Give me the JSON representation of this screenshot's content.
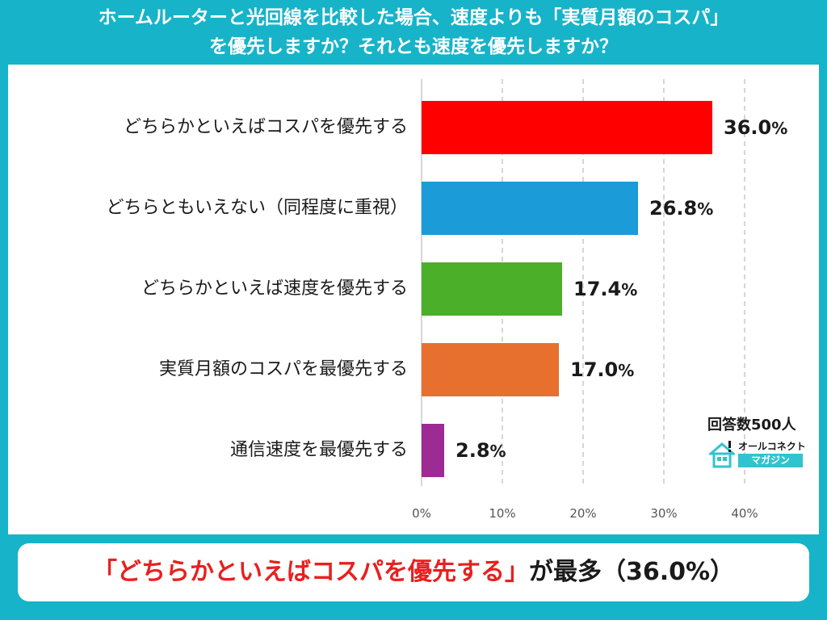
{
  "title": {
    "line1": "ホームルーターと光回線を比較した場合、速度よりも「実質月額のコスパ」",
    "line2": "を優先しますか？それとも速度を優先しますか？"
  },
  "chart_data": {
    "type": "bar",
    "orientation": "horizontal",
    "categories": [
      "どちらかといえばコスパを優先する",
      "どちらともいえない（同程度に重視）",
      "どちらかといえば速度を優先する",
      "実質月額のコスパを最優先する",
      "通信速度を最優先する"
    ],
    "values": [
      36.0,
      26.8,
      17.4,
      17.0,
      2.8
    ],
    "value_labels": [
      "36.0",
      "26.8",
      "17.4",
      "17.0",
      "2.8"
    ],
    "value_suffix": "%",
    "colors": [
      "#fe0000",
      "#1b9bd7",
      "#4caf2a",
      "#e8702e",
      "#9e2a94"
    ],
    "xlim": [
      0,
      40
    ],
    "xticks": [
      "0%",
      "10%",
      "20%",
      "30%",
      "40%"
    ],
    "xtick_values": [
      0,
      10,
      20,
      30,
      40
    ],
    "grid": "vertical dashed"
  },
  "note": "回答数500人",
  "logo": {
    "top": "オールコネクト",
    "bottom": "マガジン"
  },
  "footer": {
    "highlight": "「どちらかといえばコスパを優先する」",
    "rest": "が最多（36.0%）"
  }
}
